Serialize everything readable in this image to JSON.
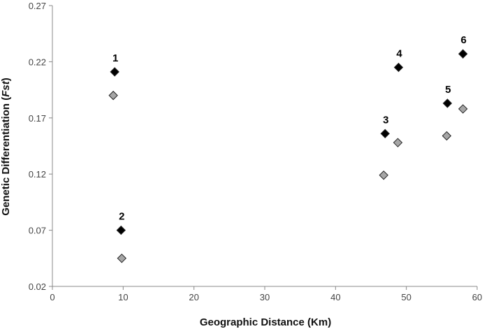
{
  "chart_data": {
    "type": "scatter",
    "title": "",
    "xlabel": "Geographic Distance (Km)",
    "ylabel_prefix": "Genetic Differentiation (",
    "ylabel_italic": "Fst",
    "ylabel_suffix": ")",
    "xlim": [
      0,
      60
    ],
    "ylim": [
      0.02,
      0.27
    ],
    "xticks": [
      "0",
      "10",
      "20",
      "30",
      "40",
      "50",
      "60"
    ],
    "yticks": [
      "0.02",
      "0.07",
      "0.12",
      "0.17",
      "0.22",
      "0.27"
    ],
    "grid": false,
    "series": [
      {
        "color": "#000000",
        "points": [
          {
            "x": 8.8,
            "y": 0.211,
            "label": "1"
          },
          {
            "x": 9.7,
            "y": 0.07,
            "label": "2"
          },
          {
            "x": 47.0,
            "y": 0.156,
            "label": "3"
          },
          {
            "x": 48.9,
            "y": 0.215,
            "label": "4"
          },
          {
            "x": 55.8,
            "y": 0.183,
            "label": "5"
          },
          {
            "x": 58.0,
            "y": 0.227,
            "label": "6"
          }
        ]
      },
      {
        "color": "#a6a6a6",
        "points": [
          {
            "x": 8.6,
            "y": 0.19
          },
          {
            "x": 9.8,
            "y": 0.045
          },
          {
            "x": 46.8,
            "y": 0.119
          },
          {
            "x": 48.8,
            "y": 0.148
          },
          {
            "x": 55.7,
            "y": 0.154
          },
          {
            "x": 58.0,
            "y": 0.178
          }
        ]
      }
    ]
  }
}
